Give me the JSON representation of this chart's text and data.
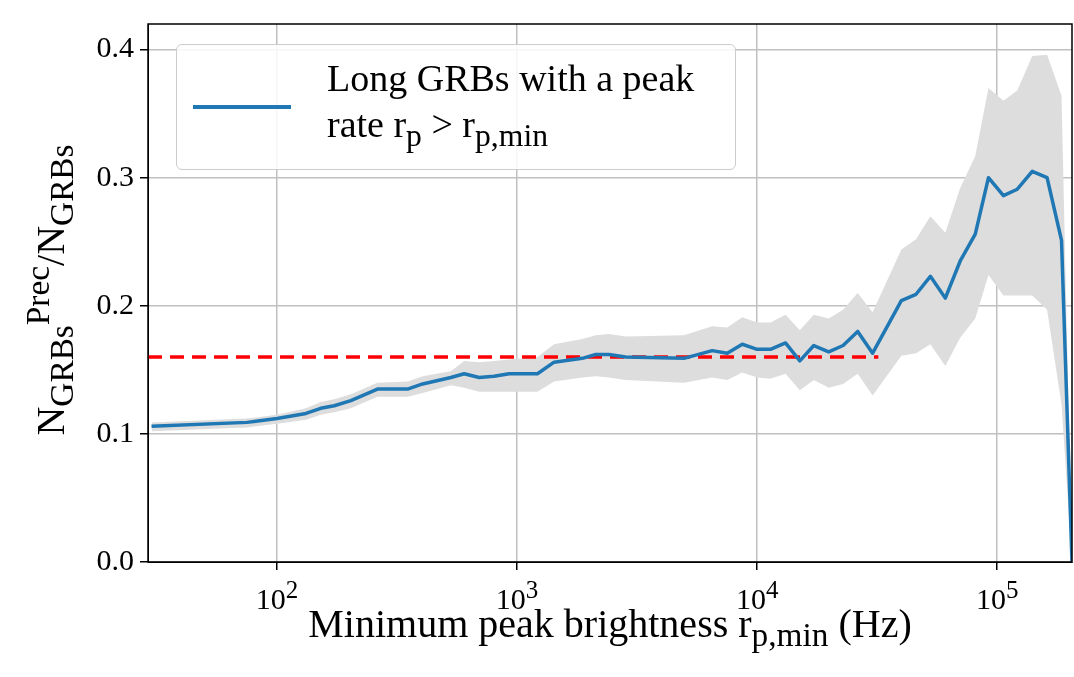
{
  "chart_data": {
    "type": "line",
    "xlabel": "Minimum peak brightness r$_{p,min}$  (Hz)",
    "ylabel": "N$_{GRBs}$$^{Prec}$/N$_{GRBs}$",
    "log": "x",
    "xlim": [
      29,
      205000
    ],
    "xticks": [
      {
        "value": 100,
        "label": "10$^{2}$"
      },
      {
        "value": 1000,
        "label": "10$^{3}$"
      },
      {
        "value": 10000,
        "label": "10$^{4}$"
      },
      {
        "value": 100000,
        "label": "10$^{5}$"
      }
    ],
    "ylim": [
      0,
      0.42
    ],
    "yticks": [
      {
        "value": 0,
        "label": "0.0"
      },
      {
        "value": 0.1,
        "label": "0.1"
      },
      {
        "value": 0.2,
        "label": "0.2"
      },
      {
        "value": 0.3,
        "label": "0.3"
      },
      {
        "value": 0.4,
        "label": "0.4"
      }
    ],
    "grid": true,
    "legend": "top left",
    "series": [
      {
        "name": "Long GRBs with a peak rate r$_{p}$ > r$_{p,min}$",
        "color": "#1f77b4",
        "line_style": "solid",
        "x": [
          30,
          75,
          100,
          132,
          152,
          173,
          203,
          262,
          350,
          404,
          530,
          602,
          695,
          802,
          926,
          1216,
          1426,
          1871,
          2128,
          2415,
          2832,
          4955,
          6500,
          7510,
          8670,
          10000,
          11370,
          13130,
          15060,
          17220,
          19870,
          22810,
          26240,
          30280,
          39890,
          45920,
          52700,
          60810,
          70150,
          81050,
          92000,
          106200,
          121300,
          140000,
          161400,
          185400,
          205000
        ],
        "values": [
          0.106,
          0.109,
          0.112,
          0.116,
          0.12,
          0.122,
          0.126,
          0.135,
          0.135,
          0.139,
          0.144,
          0.147,
          0.144,
          0.145,
          0.147,
          0.147,
          0.156,
          0.159,
          0.162,
          0.162,
          0.16,
          0.159,
          0.165,
          0.163,
          0.17,
          0.166,
          0.166,
          0.171,
          0.157,
          0.169,
          0.164,
          0.169,
          0.18,
          0.163,
          0.204,
          0.209,
          0.223,
          0.206,
          0.235,
          0.256,
          0.3,
          0.286,
          0.291,
          0.305,
          0.3,
          0.251,
          0.0
        ],
        "lower": [
          0.102,
          0.105,
          0.108,
          0.111,
          0.115,
          0.117,
          0.12,
          0.129,
          0.129,
          0.132,
          0.138,
          0.136,
          0.133,
          0.133,
          0.133,
          0.133,
          0.141,
          0.144,
          0.145,
          0.144,
          0.142,
          0.14,
          0.144,
          0.142,
          0.148,
          0.144,
          0.143,
          0.147,
          0.134,
          0.142,
          0.136,
          0.139,
          0.147,
          0.13,
          0.161,
          0.163,
          0.17,
          0.153,
          0.175,
          0.19,
          0.224,
          0.208,
          0.208,
          0.208,
          0.197,
          0.123,
          0.0
        ],
        "upper": [
          0.109,
          0.112,
          0.115,
          0.12,
          0.125,
          0.127,
          0.131,
          0.14,
          0.141,
          0.145,
          0.149,
          0.157,
          0.156,
          0.157,
          0.158,
          0.16,
          0.17,
          0.174,
          0.177,
          0.178,
          0.176,
          0.177,
          0.184,
          0.183,
          0.191,
          0.187,
          0.187,
          0.193,
          0.181,
          0.193,
          0.19,
          0.197,
          0.21,
          0.195,
          0.244,
          0.252,
          0.27,
          0.257,
          0.292,
          0.317,
          0.37,
          0.36,
          0.368,
          0.395,
          0.396,
          0.364,
          0.0
        ]
      },
      {
        "type": "line",
        "color": "#ff0000",
        "line_style": "dashed",
        "x": [
          29,
          32000
        ],
        "values": [
          0.16,
          0.16
        ]
      }
    ]
  }
}
